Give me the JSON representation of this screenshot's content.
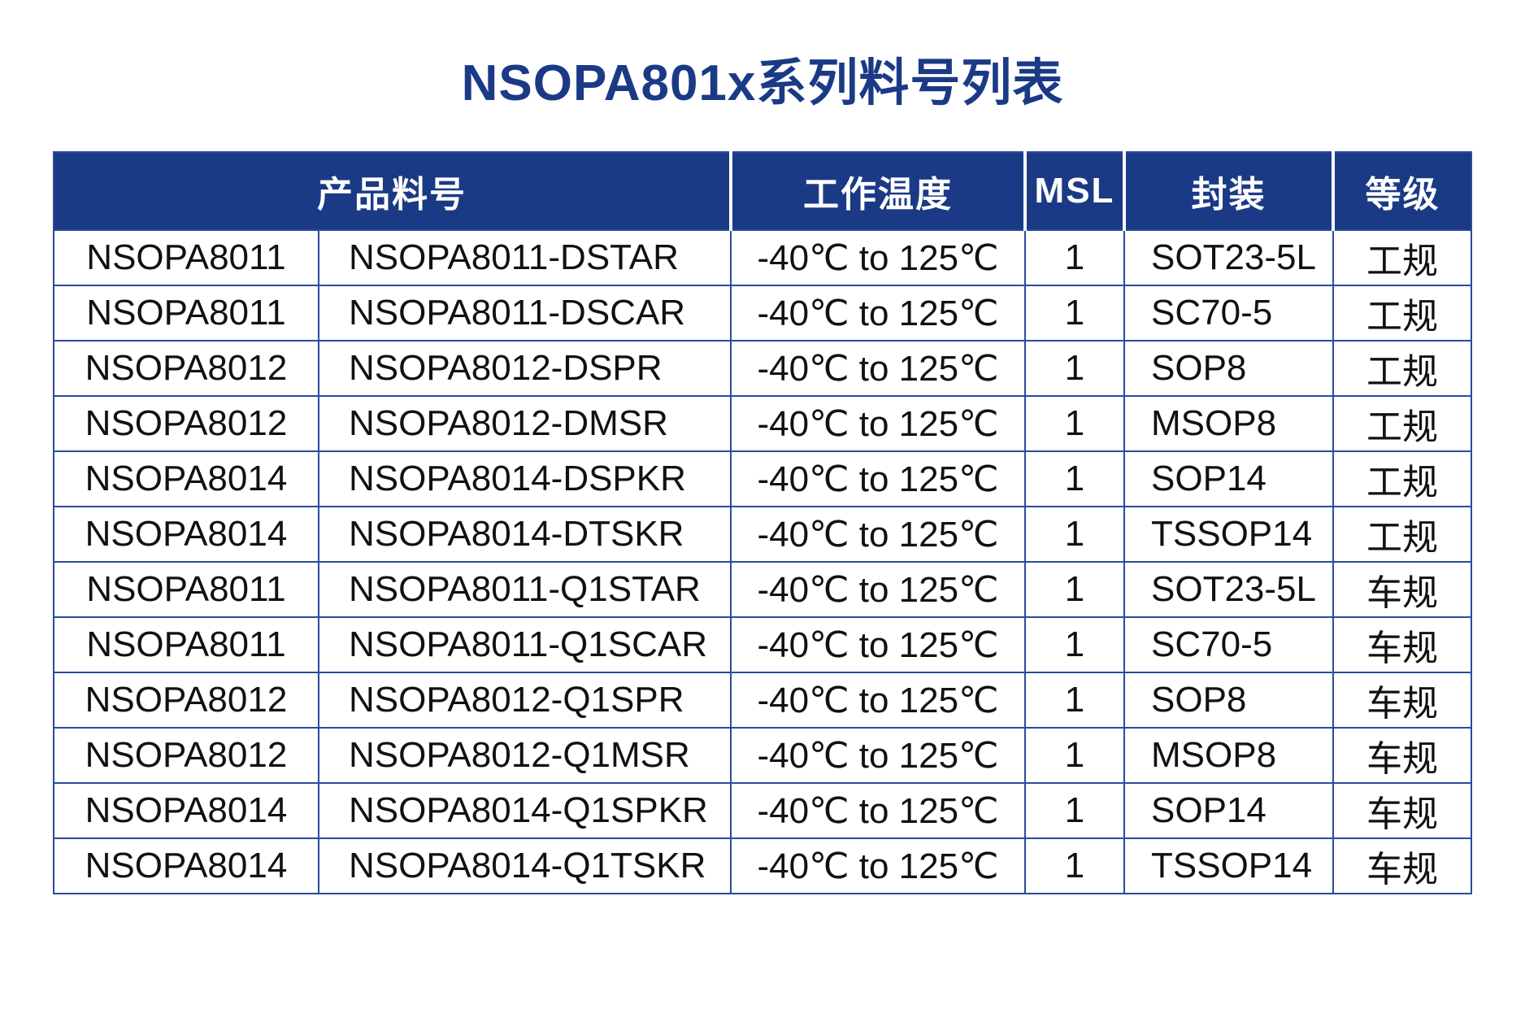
{
  "title": "NSOPA801x系列料号列表",
  "colors": {
    "brand_blue": "#1B3A86",
    "border_blue": "#2B4A9B",
    "header_text": "#FFFFFF",
    "body_text": "#111111"
  },
  "table": {
    "headers": {
      "product": "产品料号",
      "temp": "工作温度",
      "msl": "MSL",
      "package": "封装",
      "grade": "等级"
    },
    "rows": [
      {
        "series": "NSOPA8011",
        "part": "NSOPA8011-DSTAR",
        "temp": "-40℃ to 125℃",
        "msl": "1",
        "package": "SOT23-5L",
        "grade": "工规"
      },
      {
        "series": "NSOPA8011",
        "part": "NSOPA8011-DSCAR",
        "temp": "-40℃ to 125℃",
        "msl": "1",
        "package": "SC70-5",
        "grade": "工规"
      },
      {
        "series": "NSOPA8012",
        "part": "NSOPA8012-DSPR",
        "temp": "-40℃ to 125℃",
        "msl": "1",
        "package": "SOP8",
        "grade": "工规"
      },
      {
        "series": "NSOPA8012",
        "part": "NSOPA8012-DMSR",
        "temp": "-40℃ to 125℃",
        "msl": "1",
        "package": "MSOP8",
        "grade": "工规"
      },
      {
        "series": "NSOPA8014",
        "part": "NSOPA8014-DSPKR",
        "temp": "-40℃ to 125℃",
        "msl": "1",
        "package": "SOP14",
        "grade": "工规"
      },
      {
        "series": "NSOPA8014",
        "part": "NSOPA8014-DTSKR",
        "temp": "-40℃ to 125℃",
        "msl": "1",
        "package": "TSSOP14",
        "grade": "工规"
      },
      {
        "series": "NSOPA8011",
        "part": "NSOPA8011-Q1STAR",
        "temp": "-40℃ to 125℃",
        "msl": "1",
        "package": "SOT23-5L",
        "grade": "车规"
      },
      {
        "series": "NSOPA8011",
        "part": "NSOPA8011-Q1SCAR",
        "temp": "-40℃ to 125℃",
        "msl": "1",
        "package": "SC70-5",
        "grade": "车规"
      },
      {
        "series": "NSOPA8012",
        "part": "NSOPA8012-Q1SPR",
        "temp": "-40℃ to 125℃",
        "msl": "1",
        "package": "SOP8",
        "grade": "车规"
      },
      {
        "series": "NSOPA8012",
        "part": "NSOPA8012-Q1MSR",
        "temp": "-40℃ to 125℃",
        "msl": "1",
        "package": "MSOP8",
        "grade": "车规"
      },
      {
        "series": "NSOPA8014",
        "part": "NSOPA8014-Q1SPKR",
        "temp": "-40℃ to 125℃",
        "msl": "1",
        "package": "SOP14",
        "grade": "车规"
      },
      {
        "series": "NSOPA8014",
        "part": "NSOPA8014-Q1TSKR",
        "temp": "-40℃ to 125℃",
        "msl": "1",
        "package": "TSSOP14",
        "grade": "车规"
      }
    ]
  }
}
